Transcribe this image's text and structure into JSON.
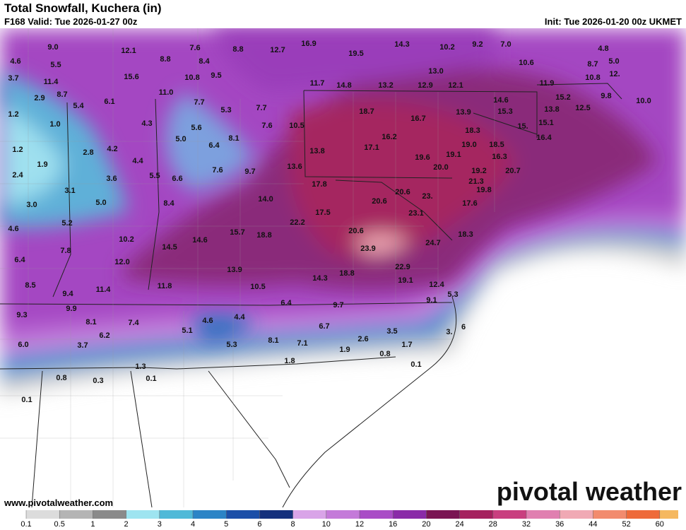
{
  "header": {
    "title": "Total Snowfall, Kuchera (in)",
    "valid": "F168 Valid: Tue 2026-01-27 00z",
    "init": "Init: Tue 2026-01-20 00z UKMET"
  },
  "map": {
    "labels": [
      "9.0",
      "12.1",
      "7.6",
      "8.8",
      "12.7",
      "16.9",
      "19.5",
      "14.3",
      "10.2",
      "9.2",
      "7.0",
      "4.8",
      "4.6",
      "5.5",
      "8.8",
      "8.4",
      "10.6",
      "8.7",
      "5.0",
      "3.7",
      "11.4",
      "15.6",
      "10.8",
      "9.5",
      "13.0",
      "10.8",
      "12.",
      "11.7",
      "14.8",
      "13.2",
      "12.9",
      "12.1",
      "11.9",
      "2.9",
      "8.7",
      "11.0",
      "6.1",
      "5.4",
      "7.7",
      "5.3",
      "7.7",
      "14.6",
      "15.2",
      "9.8",
      "10.0",
      "1.2",
      "18.7",
      "13.9",
      "15.3",
      "13.8",
      "12.5",
      "1.0",
      "4.3",
      "5.6",
      "7.6",
      "10.5",
      "16.7",
      "15.",
      "15.1",
      "18.3",
      "16.2",
      "5.0",
      "8.1",
      "6.4",
      "16.4",
      "1.2",
      "2.8",
      "4.2",
      "17.1",
      "19.0",
      "18.5",
      "1.9",
      "4.4",
      "13.8",
      "19.6",
      "19.1",
      "16.3",
      "7.6",
      "9.7",
      "13.6",
      "20.0",
      "19.2",
      "20.7",
      "2.4",
      "3.6",
      "5.5",
      "6.6",
      "17.8",
      "21.3",
      "3.1",
      "20.6",
      "23.",
      "19.8",
      "3.0",
      "5.0",
      "8.4",
      "14.0",
      "20.6",
      "17.6",
      "17.5",
      "23.1",
      "5.2",
      "22.2",
      "15.7",
      "18.8",
      "20.6",
      "18.3",
      "4.6",
      "10.2",
      "14.6",
      "14.5",
      "24.7",
      "7.8",
      "23.9",
      "6.4",
      "12.0",
      "13.9",
      "18.8",
      "22.9",
      "14.3",
      "19.1",
      "8.5",
      "11.4",
      "11.8",
      "10.5",
      "12.4",
      "5.3",
      "9.4",
      "6.4",
      "9.1",
      "9.7",
      "9.3",
      "9.9",
      "4.4",
      "4.6",
      "8.1",
      "7.4",
      "6.7",
      "3.5",
      "5.1",
      "6.2",
      "6",
      "3.",
      "2.6",
      "8.1",
      "7.1",
      "5.3",
      "6.0",
      "3.7",
      "1.7",
      "1.9",
      "0.8",
      "1.3",
      "1.8",
      "0.1",
      "0.8",
      "0.3",
      "0.1",
      "0.1"
    ]
  },
  "footer": {
    "website": "www.pivotalweather.com",
    "logo": "pivotal weather"
  },
  "legend": {
    "ticks": [
      0.1,
      0.5,
      1,
      2,
      3,
      4,
      5,
      6,
      8,
      10,
      12,
      16,
      20,
      24,
      28,
      32,
      36,
      44,
      52,
      60
    ],
    "colors": [
      "#ffffff",
      "#dcdcdc",
      "#b4b4b4",
      "#8a8a8a",
      "#9ee4f0",
      "#4fb9d8",
      "#2b84c6",
      "#1b4fa8",
      "#15307d",
      "#d9a4e8",
      "#c47ad9",
      "#a94cc6",
      "#8a2aa8",
      "#7a1553",
      "#a5215e",
      "#c93f7f",
      "#e07fb0",
      "#f0a9b4",
      "#f28b6e",
      "#ee6a3a",
      "#f5b860"
    ]
  }
}
